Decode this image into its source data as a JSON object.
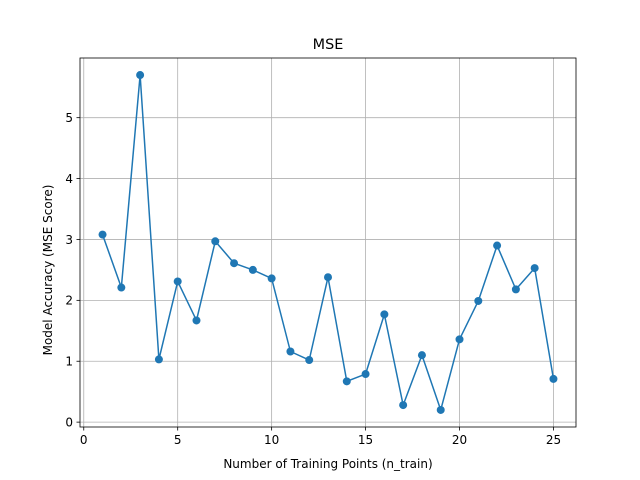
{
  "chart_data": {
    "type": "line",
    "title": "MSE",
    "xlabel": "Number of Training Points (n_train)",
    "ylabel": "Model Accuracy (MSE Score)",
    "xlim": [
      -0.2,
      26.2
    ],
    "ylim": [
      -0.08,
      5.98
    ],
    "xticks": [
      0,
      5,
      10,
      15,
      20,
      25
    ],
    "yticks": [
      0,
      1,
      2,
      3,
      4,
      5
    ],
    "grid": true,
    "series": [
      {
        "color": "#1f77b4",
        "marker": "circle",
        "x": [
          1,
          2,
          3,
          4,
          5,
          6,
          7,
          8,
          9,
          10,
          11,
          12,
          13,
          14,
          15,
          16,
          17,
          18,
          19,
          20,
          21,
          22,
          23,
          24,
          25
        ],
        "values": [
          3.08,
          2.21,
          5.7,
          1.03,
          2.31,
          1.67,
          2.97,
          2.61,
          2.5,
          2.36,
          1.16,
          1.02,
          2.38,
          0.67,
          0.79,
          1.77,
          0.28,
          1.1,
          0.2,
          1.36,
          1.99,
          2.9,
          2.18,
          2.53,
          0.71
        ]
      }
    ]
  }
}
